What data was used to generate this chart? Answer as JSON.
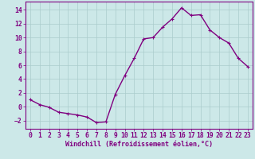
{
  "x": [
    0,
    1,
    2,
    3,
    4,
    5,
    6,
    7,
    8,
    9,
    10,
    11,
    12,
    13,
    14,
    15,
    16,
    17,
    18,
    19,
    20,
    21,
    22,
    23
  ],
  "y": [
    1.0,
    0.3,
    -0.1,
    -0.8,
    -1.0,
    -1.2,
    -1.5,
    -2.3,
    -2.2,
    1.8,
    4.5,
    7.0,
    9.8,
    10.0,
    11.5,
    12.7,
    14.3,
    13.2,
    13.3,
    11.1,
    10.0,
    9.2,
    7.0,
    5.8
  ],
  "line_color": "#800080",
  "marker": "+",
  "marker_size": 3,
  "xlabel": "Windchill (Refroidissement éolien,°C)",
  "xlim": [
    -0.5,
    23.5
  ],
  "ylim": [
    -3.2,
    15.2
  ],
  "yticks": [
    -2,
    0,
    2,
    4,
    6,
    8,
    10,
    12,
    14
  ],
  "xticks": [
    0,
    1,
    2,
    3,
    4,
    5,
    6,
    7,
    8,
    9,
    10,
    11,
    12,
    13,
    14,
    15,
    16,
    17,
    18,
    19,
    20,
    21,
    22,
    23
  ],
  "background_color": "#cce8e8",
  "grid_color": "#aacccc",
  "border_color": "#800080",
  "tick_color": "#800080",
  "label_color": "#800080",
  "xlabel_fontsize": 6.0,
  "tick_fontsize": 5.8,
  "linewidth": 1.0,
  "marker_edge_width": 0.8
}
